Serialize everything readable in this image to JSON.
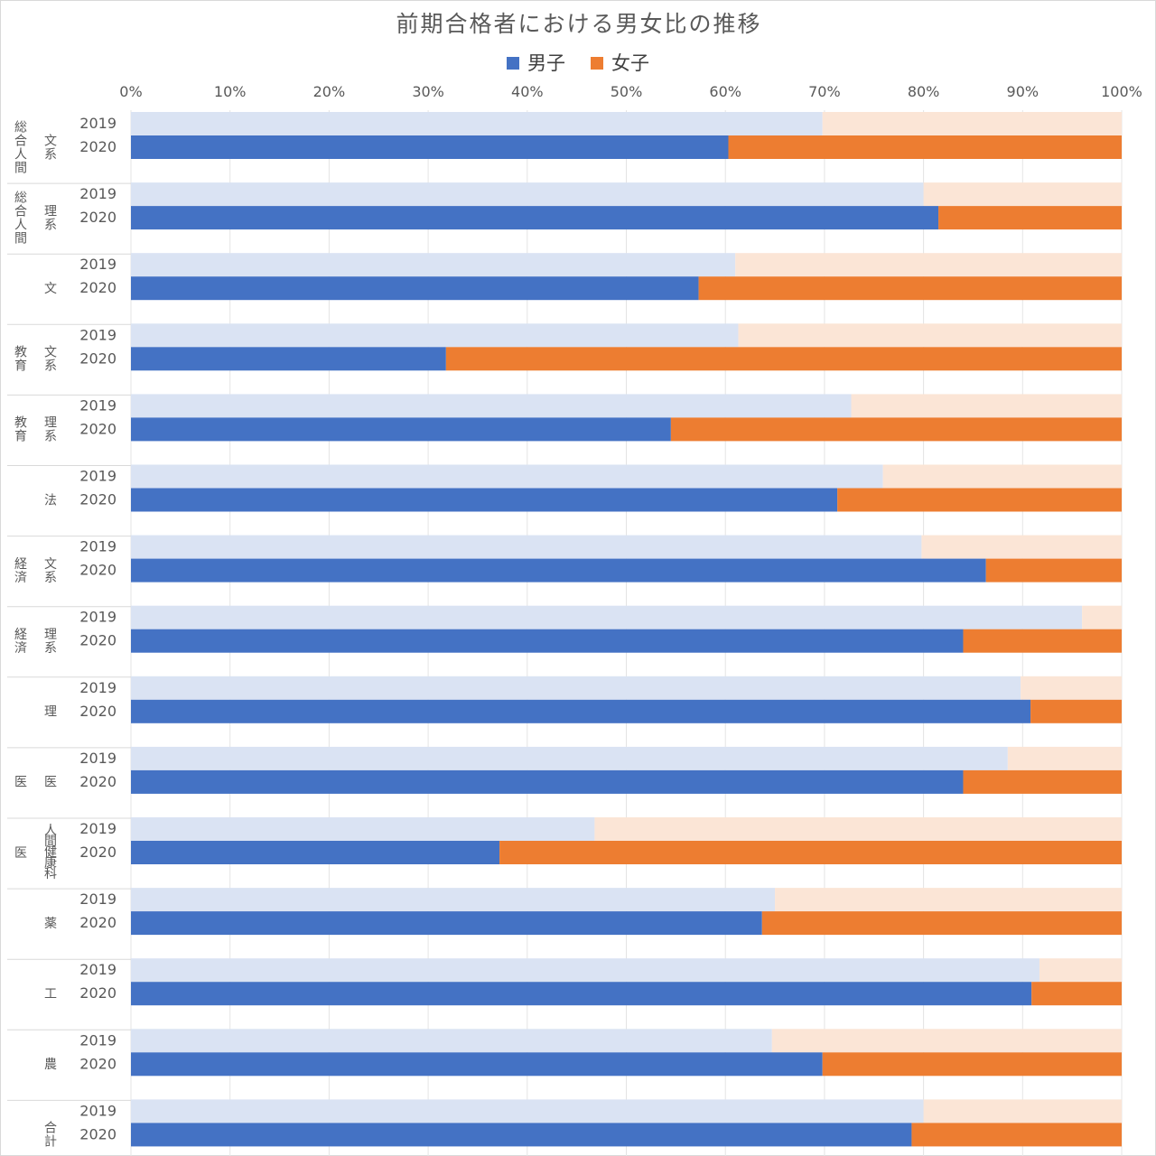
{
  "chart_data": {
    "type": "bar",
    "orientation": "horizontal",
    "stacked": true,
    "normalized": true,
    "title": "前期合格者における男女比の推移",
    "legend": {
      "placement": "top-center",
      "entries": [
        "男子",
        "女子"
      ]
    },
    "xlim": [
      0,
      100
    ],
    "x_ticks": [
      "0%",
      "10%",
      "20%",
      "30%",
      "40%",
      "50%",
      "60%",
      "70%",
      "80%",
      "90%",
      "100%"
    ],
    "grid": true,
    "colors": {
      "male_2020": "#4472c4",
      "female_2020": "#ed7d31",
      "male_2019": "#dae3f3",
      "female_2019": "#fbe5d6"
    },
    "groups": [
      {
        "label_lines": [
          "総合人間",
          "文系"
        ],
        "rows": [
          {
            "year": "2019",
            "male": 69.8,
            "female": 30.2
          },
          {
            "year": "2020",
            "male": 60.3,
            "female": 39.7
          }
        ]
      },
      {
        "label_lines": [
          "総合人間",
          "理系"
        ],
        "rows": [
          {
            "year": "2019",
            "male": 80.0,
            "female": 20.0
          },
          {
            "year": "2020",
            "male": 81.5,
            "female": 18.5
          }
        ]
      },
      {
        "label_lines": [
          "",
          "文"
        ],
        "rows": [
          {
            "year": "2019",
            "male": 61.0,
            "female": 39.0
          },
          {
            "year": "2020",
            "male": 57.3,
            "female": 42.7
          }
        ]
      },
      {
        "label_lines": [
          "教育",
          "文系"
        ],
        "rows": [
          {
            "year": "2019",
            "male": 61.3,
            "female": 38.7
          },
          {
            "year": "2020",
            "male": 31.8,
            "female": 68.2
          }
        ]
      },
      {
        "label_lines": [
          "教育",
          "理系"
        ],
        "rows": [
          {
            "year": "2019",
            "male": 72.7,
            "female": 27.3
          },
          {
            "year": "2020",
            "male": 54.5,
            "female": 45.5
          }
        ]
      },
      {
        "label_lines": [
          "",
          "法"
        ],
        "rows": [
          {
            "year": "2019",
            "male": 75.9,
            "female": 24.1
          },
          {
            "year": "2020",
            "male": 71.3,
            "female": 28.7
          }
        ]
      },
      {
        "label_lines": [
          "経済",
          "文系"
        ],
        "rows": [
          {
            "year": "2019",
            "male": 79.8,
            "female": 20.2
          },
          {
            "year": "2020",
            "male": 86.3,
            "female": 13.7
          }
        ]
      },
      {
        "label_lines": [
          "経済",
          "理系"
        ],
        "rows": [
          {
            "year": "2019",
            "male": 96.0,
            "female": 4.0
          },
          {
            "year": "2020",
            "male": 84.0,
            "female": 16.0
          }
        ]
      },
      {
        "label_lines": [
          "",
          "理"
        ],
        "rows": [
          {
            "year": "2019",
            "male": 89.8,
            "female": 10.2
          },
          {
            "year": "2020",
            "male": 90.8,
            "female": 9.2
          }
        ]
      },
      {
        "label_lines": [
          "医",
          "医"
        ],
        "rows": [
          {
            "year": "2019",
            "male": 88.5,
            "female": 11.5
          },
          {
            "year": "2020",
            "male": 84.0,
            "female": 16.0
          }
        ]
      },
      {
        "label_lines": [
          "医",
          "人間健康科"
        ],
        "rows": [
          {
            "year": "2019",
            "male": 46.8,
            "female": 53.2
          },
          {
            "year": "2020",
            "male": 37.2,
            "female": 62.8
          }
        ]
      },
      {
        "label_lines": [
          "",
          "薬"
        ],
        "rows": [
          {
            "year": "2019",
            "male": 65.0,
            "female": 35.0
          },
          {
            "year": "2020",
            "male": 63.7,
            "female": 36.3
          }
        ]
      },
      {
        "label_lines": [
          "",
          "工"
        ],
        "rows": [
          {
            "year": "2019",
            "male": 91.7,
            "female": 8.3
          },
          {
            "year": "2020",
            "male": 90.9,
            "female": 9.1
          }
        ]
      },
      {
        "label_lines": [
          "",
          "農"
        ],
        "rows": [
          {
            "year": "2019",
            "male": 64.7,
            "female": 35.3
          },
          {
            "year": "2020",
            "male": 69.8,
            "female": 30.2
          }
        ]
      },
      {
        "label_lines": [
          "",
          "合計"
        ],
        "rows": [
          {
            "year": "2019",
            "male": 80.0,
            "female": 20.0
          },
          {
            "year": "2020",
            "male": 78.8,
            "female": 21.2
          }
        ]
      }
    ]
  }
}
